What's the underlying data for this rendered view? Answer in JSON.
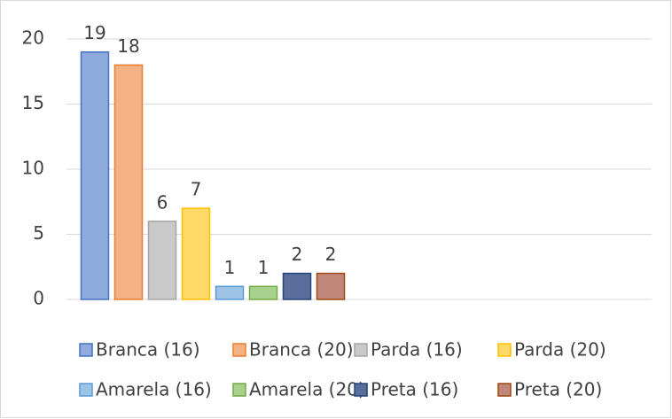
{
  "chart_data": {
    "type": "bar",
    "categories": [
      null,
      null
    ],
    "series": [
      {
        "name": "Branca (16)",
        "color": "#8faadc",
        "edge_color": "#4472c4",
        "values": [
          19,
          null
        ]
      },
      {
        "name": "Branca (20)",
        "color": "#f4b183",
        "edge_color": "#ed7d31",
        "values": [
          18,
          null
        ]
      },
      {
        "name": "Parda (16)",
        "color": "#c9c9c9",
        "edge_color": "#a5a5a5",
        "values": [
          6,
          null
        ]
      },
      {
        "name": "Parda (20)",
        "color": "#ffd966",
        "edge_color": "#ffc000",
        "values": [
          7,
          null
        ]
      },
      {
        "name": "Amarela (16)",
        "color": "#9dc3e6",
        "edge_color": "#5b9bd5",
        "values": [
          1,
          null
        ]
      },
      {
        "name": "Amarela (20)",
        "color": "#a9d18e",
        "edge_color": "#70ad47",
        "values": [
          1,
          null
        ]
      },
      {
        "name": "Preta (16)",
        "color": "#5a6e9c",
        "edge_color": "#264478",
        "values": [
          2,
          null
        ]
      },
      {
        "name": "Preta (20)",
        "color": "#c0877a",
        "edge_color": "#9e480e",
        "values": [
          2,
          null
        ]
      }
    ],
    "ylim": [
      0,
      20
    ],
    "yticks": [
      0,
      5,
      10,
      15,
      20
    ],
    "grid": true,
    "legend": "bottom"
  }
}
